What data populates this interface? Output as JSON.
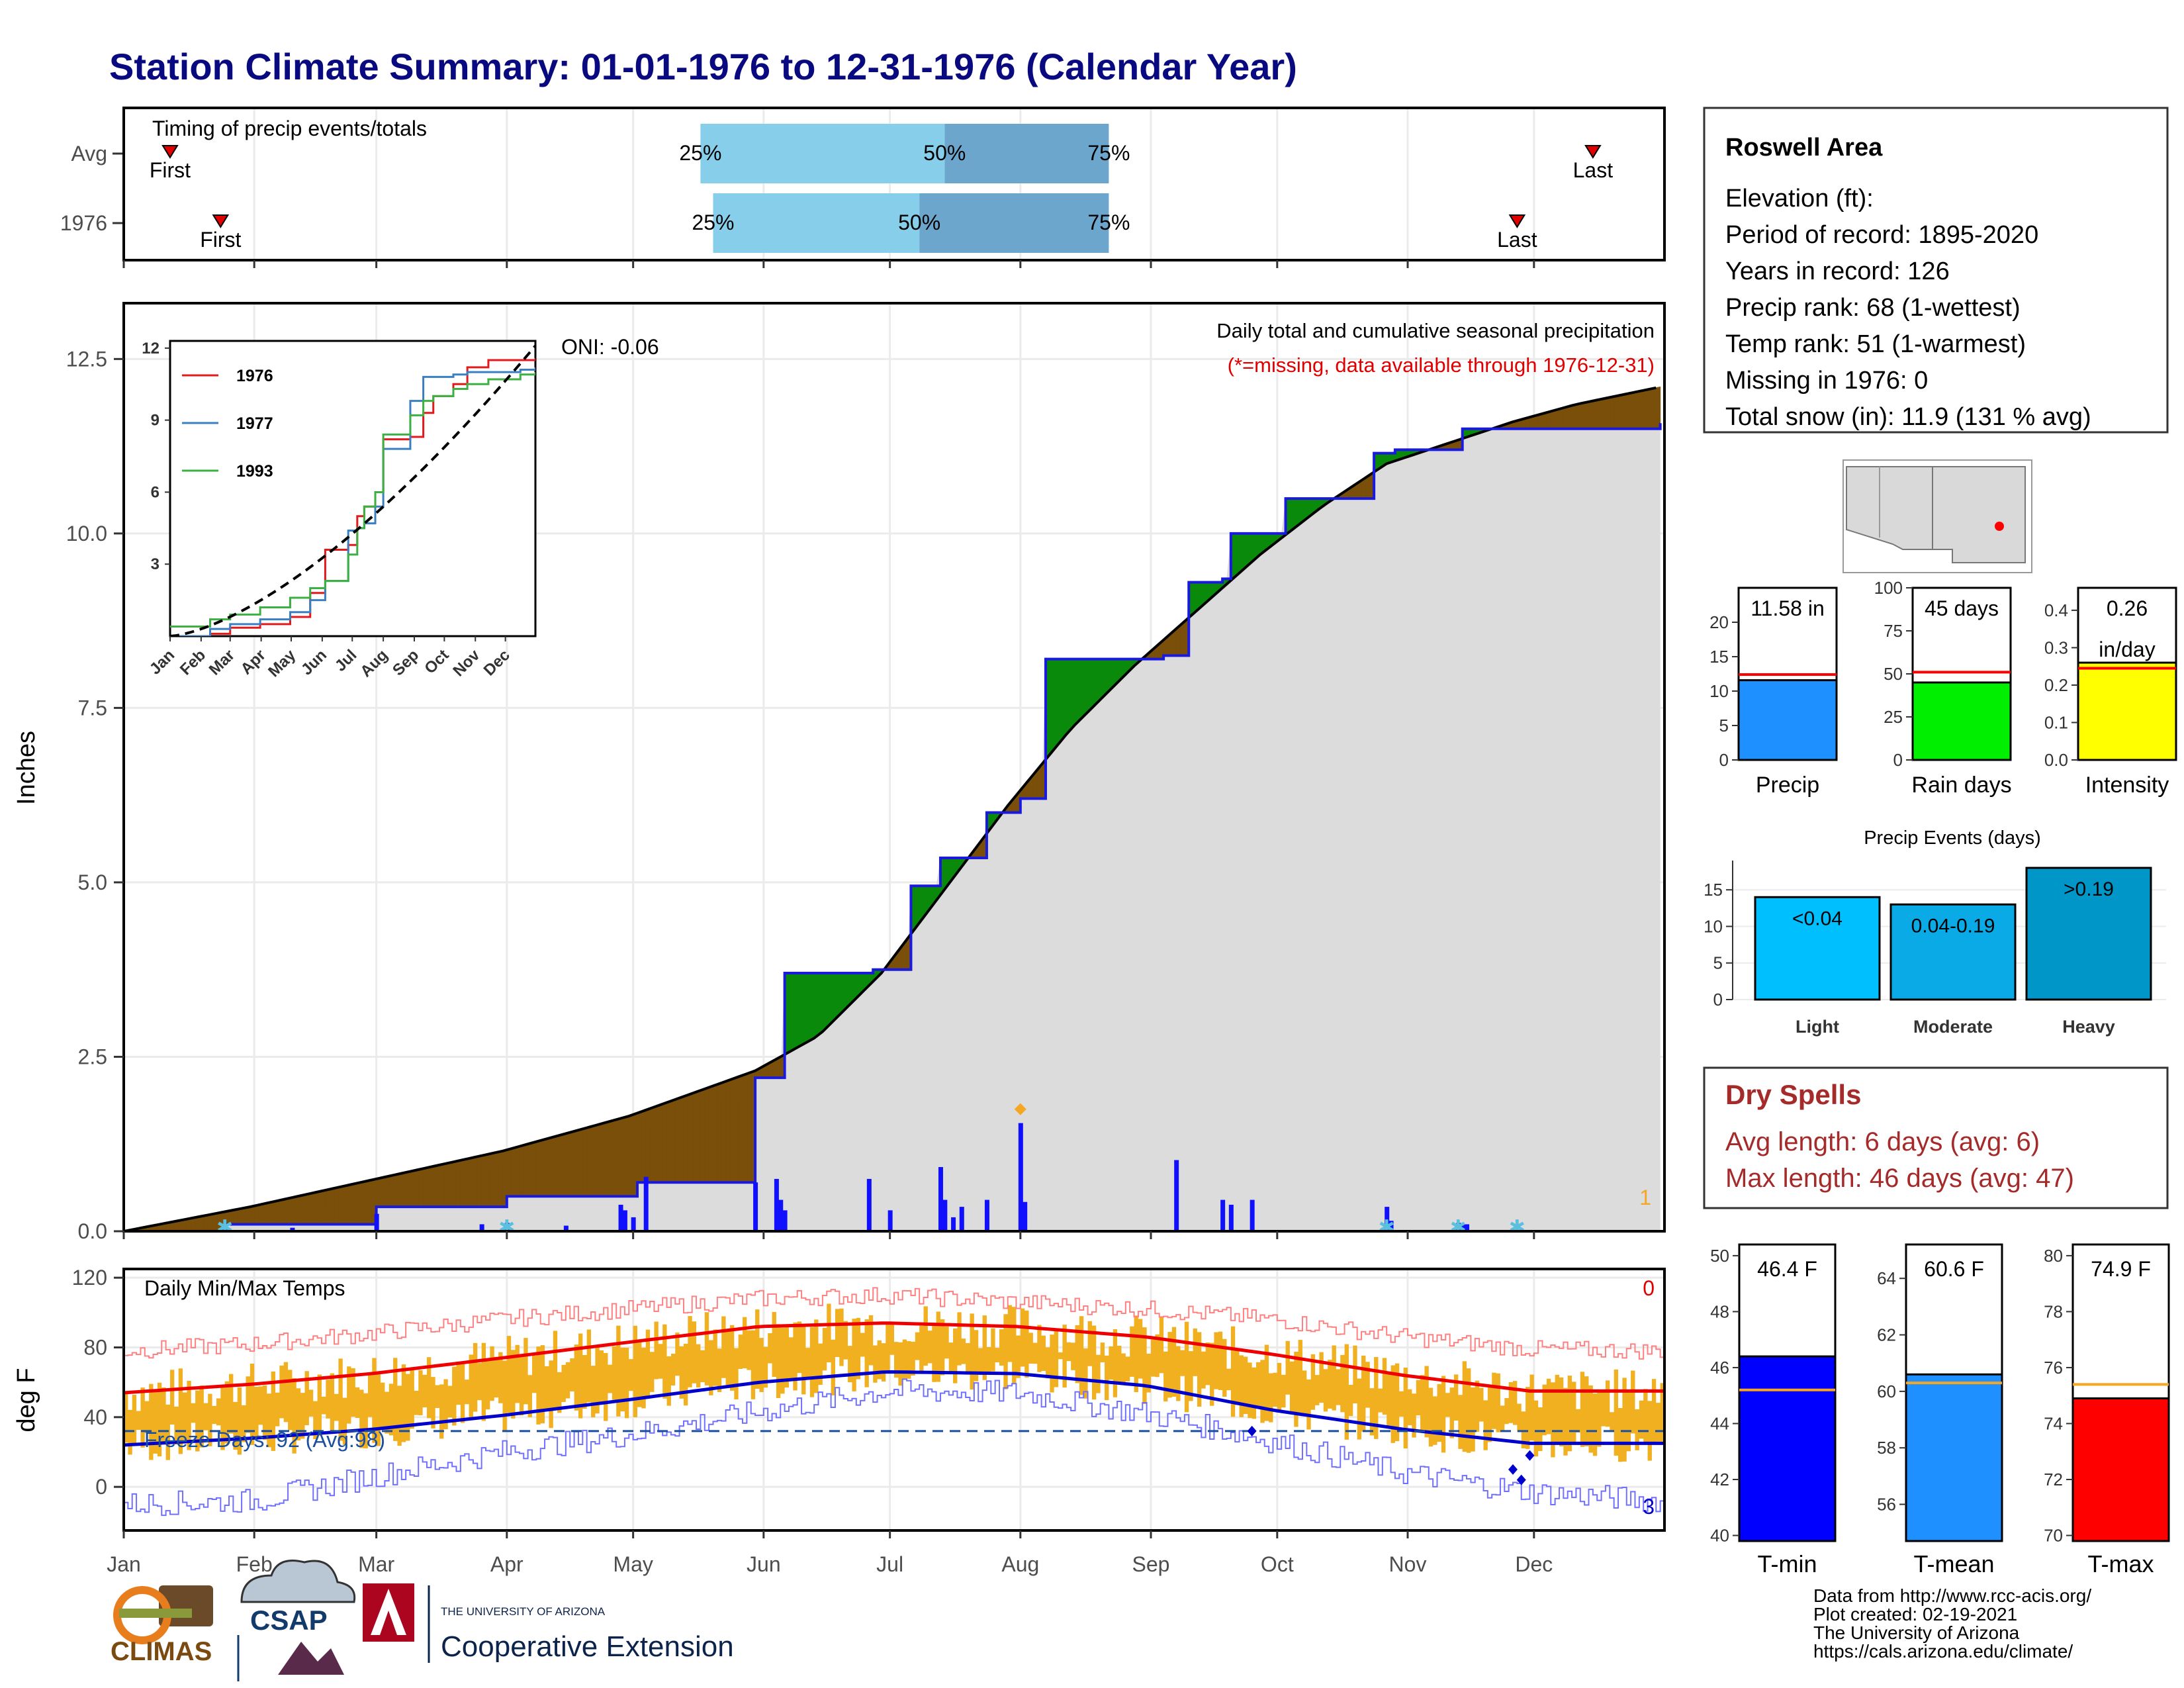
{
  "title": "Station Climate Summary: 01-01-1976 to 12-31-1976 (Calendar Year)",
  "timing": {
    "label": "Timing of precip events/totals",
    "rows": [
      {
        "name": "Avg",
        "first": "First",
        "last": "Last",
        "first_day": 11,
        "last_day": 349,
        "p25": 137,
        "p50": 195,
        "p75": 234
      },
      {
        "name": "1976",
        "first": "First",
        "last": "Last",
        "first_day": 23,
        "last_day": 331,
        "p25": 140,
        "p50": 189,
        "p75": 234
      }
    ],
    "pct_labels": [
      "25%",
      "50%",
      "75%"
    ]
  },
  "months": [
    "Jan",
    "Feb",
    "Mar",
    "Apr",
    "May",
    "Jun",
    "Jul",
    "Aug",
    "Sep",
    "Oct",
    "Nov",
    "Dec"
  ],
  "precip_panel": {
    "ylabel": "Inches",
    "title": "Daily total and cumulative seasonal precipitation",
    "subtitle": "(*=missing, data available through 1976-12-31)",
    "oni": "ONI: -0.06",
    "right_count": "1",
    "yticks": [
      "0.0",
      "2.5",
      "5.0",
      "7.5",
      "10.0",
      "12.5"
    ]
  },
  "inset": {
    "yticks": [
      "3",
      "6",
      "9",
      "12"
    ],
    "xticks": [
      "Jan",
      "Feb",
      "Mar",
      "Apr",
      "May",
      "Jun",
      "Jul",
      "Aug",
      "Sep",
      "Oct",
      "Nov",
      "Dec"
    ],
    "legend": [
      {
        "name": "1976",
        "color": "#e31a1c"
      },
      {
        "name": "1977",
        "color": "#3a7fc1"
      },
      {
        "name": "1993",
        "color": "#3cb043"
      }
    ]
  },
  "temp_panel": {
    "ylabel": "deg F",
    "title": "Daily Min/Max Temps",
    "freeze": "Freeze Days: 92 (Avg:98)",
    "count_top": "0",
    "count_bottom": "3",
    "yticks": [
      "0",
      "40",
      "80",
      "120"
    ]
  },
  "info_box": {
    "station": "Roswell Area",
    "lines": [
      "Elevation (ft):",
      "Period of record: 1895-2020",
      "Years in record: 126",
      "Precip rank: 68 (1-wettest)",
      "Temp rank: 51 (1-warmest)",
      "Missing in 1976: 0",
      "Total snow (in): 11.9 (131 % avg)"
    ]
  },
  "mini_bars": [
    {
      "name": "Precip",
      "label": "11.58 in",
      "label2": "",
      "value": 11.58,
      "avg": 12.4,
      "ymax": 25,
      "ticks": [
        "0",
        "5",
        "10",
        "15",
        "20"
      ],
      "tickvals": [
        0,
        5,
        10,
        15,
        20
      ],
      "color": "#1e90ff"
    },
    {
      "name": "Rain days",
      "label": "45 days",
      "label2": "",
      "value": 45,
      "avg": 51,
      "ymax": 100,
      "ticks": [
        "0",
        "25",
        "50",
        "75",
        "100"
      ],
      "tickvals": [
        0,
        25,
        50,
        75,
        100
      ],
      "color": "#00ee00"
    },
    {
      "name": "Intensity",
      "label": "0.26",
      "label2": "in/day",
      "value": 0.26,
      "avg": 0.245,
      "ymax": 0.46,
      "ticks": [
        "0.0",
        "0.1",
        "0.2",
        "0.3",
        "0.4"
      ],
      "tickvals": [
        0,
        0.1,
        0.2,
        0.3,
        0.4
      ],
      "color": "#ffff00"
    }
  ],
  "precip_events": {
    "title": "Precip Events (days)",
    "yticks": [
      "0",
      "5",
      "10",
      "15"
    ],
    "bars": [
      {
        "name": "Light",
        "label": "<0.04",
        "value": 14,
        "color": "#00bfff"
      },
      {
        "name": "Moderate",
        "label": "0.04-0.19",
        "value": 13,
        "color": "#0aaae6"
      },
      {
        "name": "Heavy",
        "label": ">0.19",
        "value": 18,
        "color": "#0097c8"
      }
    ]
  },
  "dry_spells": {
    "title": "Dry Spells",
    "avg": "Avg length: 6 days (avg: 6)",
    "max": "Max length: 46 days (avg: 47)"
  },
  "temp_bars": [
    {
      "name": "T-min",
      "label": "46.4 F",
      "value": 46.4,
      "avg": 45.2,
      "ymin": 39.8,
      "ymax": 50.4,
      "ticks": [
        "40",
        "42",
        "44",
        "46",
        "48",
        "50"
      ],
      "tickvals": [
        40,
        42,
        44,
        46,
        48,
        50
      ],
      "color": "#0000ff"
    },
    {
      "name": "T-mean",
      "label": "60.6 F",
      "value": 60.6,
      "avg": 60.3,
      "ymin": 54.7,
      "ymax": 65.2,
      "ticks": [
        "56",
        "58",
        "60",
        "62",
        "64"
      ],
      "tickvals": [
        56,
        58,
        60,
        62,
        64
      ],
      "color": "#1e90ff"
    },
    {
      "name": "T-max",
      "label": "74.9 F",
      "value": 74.9,
      "avg": 75.4,
      "ymin": 69.8,
      "ymax": 80.4,
      "ticks": [
        "70",
        "72",
        "74",
        "76",
        "78",
        "80"
      ],
      "tickvals": [
        70,
        72,
        74,
        76,
        78,
        80
      ],
      "color": "#ff0000"
    }
  ],
  "credits": [
    "Data from http://www.rcc-acis.org/",
    "Plot created: 02-19-2021",
    "The University of Arizona",
    "https://cals.arizona.edu/climate/"
  ],
  "logos": {
    "climas": "CLIMAS",
    "csap": "CSAP",
    "ua_small": "THE UNIVERSITY OF ARIZONA",
    "ua_big": "Cooperative Extension"
  },
  "chart_data": [
    {
      "type": "area",
      "title": "Daily total and cumulative seasonal precipitation",
      "ylabel": "Inches",
      "ylim": [
        0,
        13.3
      ],
      "x_units": "day of year",
      "series": [
        {
          "name": "1976",
          "x": [
            0,
            24,
            40,
            60,
            85,
            91,
            122,
            150,
            157,
            178,
            187,
            194,
            205,
            213,
            219,
            240,
            247,
            253,
            261,
            263,
            268,
            276,
            283,
            294,
            297,
            302,
            318,
            335,
            350,
            365
          ],
          "y": [
            0,
            0.1,
            0.1,
            0.35,
            0.35,
            0.5,
            0.7,
            2.2,
            3.7,
            3.75,
            4.95,
            5.35,
            6.0,
            6.2,
            8.2,
            8.2,
            8.25,
            9.3,
            9.35,
            10.0,
            10.0,
            10.5,
            10.5,
            10.5,
            11.15,
            11.2,
            11.5,
            11.5,
            11.5,
            11.58
          ]
        },
        {
          "name": "Avg",
          "x": [
            0,
            30,
            60,
            90,
            120,
            150,
            165,
            180,
            195,
            210,
            225,
            240,
            255,
            270,
            285,
            300,
            315,
            330,
            345,
            365
          ],
          "y": [
            0,
            0.35,
            0.75,
            1.15,
            1.65,
            2.3,
            2.8,
            3.7,
            4.9,
            6.1,
            7.2,
            8.1,
            8.9,
            9.7,
            10.4,
            11.0,
            11.3,
            11.6,
            11.85,
            12.1
          ]
        }
      ],
      "daily": [
        {
          "day": 24,
          "value": 0.08
        },
        {
          "day": 40,
          "value": 0.05
        },
        {
          "day": 60,
          "value": 0.25
        },
        {
          "day": 85,
          "value": 0.1
        },
        {
          "day": 91,
          "value": 0.12
        },
        {
          "day": 105,
          "value": 0.08
        },
        {
          "day": 118,
          "value": 0.38
        },
        {
          "day": 119,
          "value": 0.3
        },
        {
          "day": 121,
          "value": 0.2
        },
        {
          "day": 124,
          "value": 0.78
        },
        {
          "day": 150,
          "value": 0.7
        },
        {
          "day": 155,
          "value": 0.75
        },
        {
          "day": 156,
          "value": 0.45
        },
        {
          "day": 157,
          "value": 0.3
        },
        {
          "day": 177,
          "value": 0.75
        },
        {
          "day": 182,
          "value": 0.3
        },
        {
          "day": 194,
          "value": 0.92
        },
        {
          "day": 195,
          "value": 0.45
        },
        {
          "day": 197,
          "value": 0.2
        },
        {
          "day": 199,
          "value": 0.35
        },
        {
          "day": 205,
          "value": 0.45
        },
        {
          "day": 213,
          "value": 1.55
        },
        {
          "day": 214,
          "value": 0.42
        },
        {
          "day": 250,
          "value": 1.02
        },
        {
          "day": 261,
          "value": 0.45
        },
        {
          "day": 263,
          "value": 0.38
        },
        {
          "day": 268,
          "value": 0.45
        },
        {
          "day": 300,
          "value": 0.35
        },
        {
          "day": 301,
          "value": 0.15
        },
        {
          "day": 317,
          "value": 0.12
        },
        {
          "day": 318,
          "value": 0.1
        },
        {
          "day": 319,
          "value": 0.1
        }
      ]
    },
    {
      "type": "line",
      "title": "Daily Min/Max Temps",
      "ylabel": "deg F",
      "ylim": [
        -25,
        125
      ],
      "x_units": "day of year",
      "series": [
        {
          "name": "Avg max",
          "x": [
            0,
            31,
            59,
            90,
            120,
            151,
            181,
            212,
            243,
            273,
            304,
            334,
            365
          ],
          "y": [
            54,
            59,
            65,
            74,
            83,
            92,
            94,
            92,
            86,
            76,
            64,
            55,
            55
          ]
        },
        {
          "name": "Avg min",
          "x": [
            0,
            31,
            59,
            90,
            120,
            151,
            181,
            212,
            243,
            273,
            304,
            334,
            365
          ],
          "y": [
            24,
            28,
            33,
            41,
            50,
            60,
            66,
            65,
            58,
            44,
            33,
            25,
            25
          ]
        },
        {
          "name": "Record high",
          "x": [
            0,
            31,
            59,
            90,
            120,
            151,
            181,
            212,
            243,
            273,
            304,
            334,
            365
          ],
          "y": [
            78,
            82,
            88,
            96,
            102,
            108,
            110,
            106,
            102,
            96,
            86,
            79,
            78
          ]
        },
        {
          "name": "Record low",
          "x": [
            0,
            31,
            59,
            90,
            120,
            151,
            181,
            212,
            243,
            273,
            304,
            334,
            365
          ],
          "y": [
            -10,
            -8,
            6,
            20,
            30,
            43,
            55,
            54,
            42,
            26,
            8,
            -3,
            -8
          ]
        }
      ],
      "freeze_line": 32
    }
  ]
}
